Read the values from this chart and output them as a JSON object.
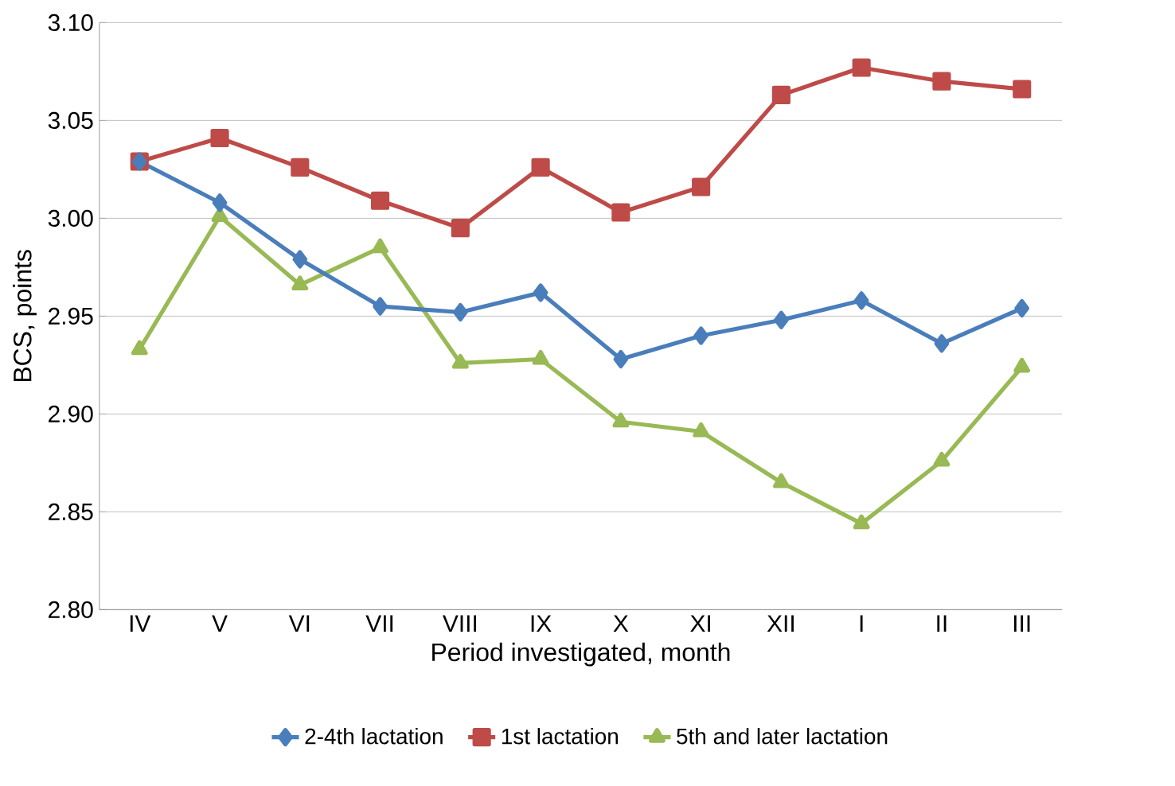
{
  "chart_data": {
    "type": "line",
    "xlabel": "Period investigated, month",
    "ylabel": "BCS, points",
    "categories": [
      "IV",
      "V",
      "VI",
      "VII",
      "VIII",
      "IX",
      "X",
      "XI",
      "XII",
      "I",
      "II",
      "III"
    ],
    "series": [
      {
        "name": "2-4th lactation",
        "color": "#4a7ebb",
        "marker": "diamond",
        "values": [
          3.029,
          3.008,
          2.979,
          2.955,
          2.952,
          2.962,
          2.928,
          2.94,
          2.948,
          2.958,
          2.936,
          2.954
        ]
      },
      {
        "name": "1st lactation",
        "color": "#be4b48",
        "marker": "square",
        "values": [
          3.029,
          3.041,
          3.026,
          3.009,
          2.995,
          3.026,
          3.003,
          3.016,
          3.063,
          3.077,
          3.07,
          3.066
        ]
      },
      {
        "name": "5th and later lactation",
        "color": "#98b954",
        "marker": "triangle",
        "values": [
          2.933,
          3.001,
          2.966,
          2.985,
          2.926,
          2.928,
          2.896,
          2.891,
          2.865,
          2.844,
          2.876,
          2.924
        ]
      }
    ],
    "ylim": [
      2.8,
      3.1
    ],
    "yticks": [
      {
        "value": 2.8,
        "label": "2.80"
      },
      {
        "value": 2.85,
        "label": "2.85"
      },
      {
        "value": 2.9,
        "label": "2.90"
      },
      {
        "value": 2.95,
        "label": "2.95"
      },
      {
        "value": 3.0,
        "label": "3.00"
      },
      {
        "value": 3.05,
        "label": "3.05"
      },
      {
        "value": 3.1,
        "label": "3.10"
      }
    ],
    "grid": "y",
    "legend": "bottom",
    "line_style": "solid"
  }
}
